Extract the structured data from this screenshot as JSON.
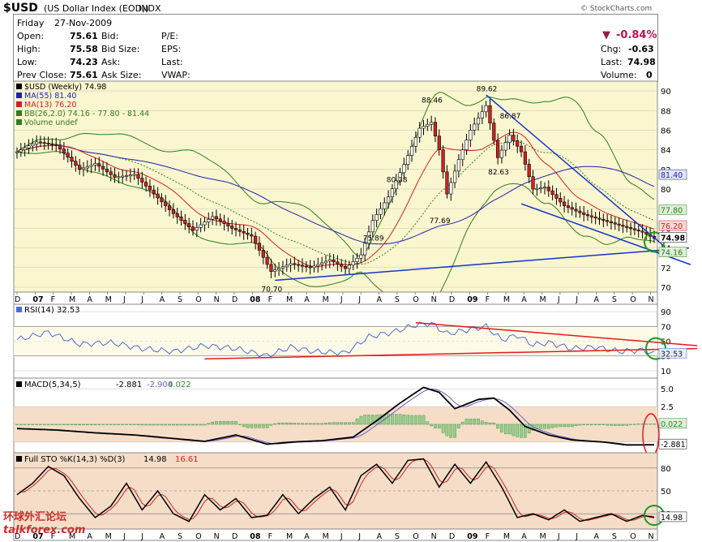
{
  "header": {
    "symbol": "$USD",
    "name": "(US Dollar Index (EOD))",
    "exchange": "INDX",
    "copyright": "© StockCharts.com",
    "day": "Friday",
    "date": "27-Nov-2009",
    "change_pct": "-0.84%",
    "fields": {
      "open_label": "Open:",
      "open": "75.61",
      "high_label": "High:",
      "high": "75.58",
      "low_label": "Low:",
      "low": "74.23",
      "prev_label": "Prev Close:",
      "prev": "75.61",
      "bid_label": "Bid:",
      "bidsize_label": "Bid Size:",
      "ask_label": "Ask:",
      "asksize_label": "Ask Size:",
      "pe_label": "P/E:",
      "eps_label": "EPS:",
      "last_label_mid": "Last:",
      "vwap_label": "VWAP:",
      "chg_label": "Chg:",
      "chg": "-0.63",
      "last_label": "Last:",
      "last": "74.98",
      "volume_label": "Volume:",
      "volume": "0"
    }
  },
  "colors": {
    "panel_bg": "#faf6cf",
    "osc_bg": "#f5ddc8",
    "price": "#000000",
    "ma55": "#1f1fb0",
    "ma13": "#d32020",
    "bb": "#2e7d1e",
    "trend_blue": "#1433c8",
    "trend_red": "#e31a1a",
    "rsi": "#4a6ad8",
    "macd": "#000000",
    "signal": "#6a5acd",
    "hist": "#2e8b2e"
  },
  "chart_data": [
    {
      "type": "candlestick",
      "title": "$USD (Weekly) 74.98",
      "legend": [
        "$USD (Weekly) 74.98",
        "MA(55) 81.40",
        "MA(13) 76.20",
        "BB(26,2.0) 74.16 - 77.80 - 81.44",
        "Volume undef"
      ],
      "y_ticks": [
        70,
        72,
        74,
        76,
        78,
        80,
        82,
        84,
        86,
        88,
        90
      ],
      "ylim": [
        69.5,
        91
      ],
      "x_ticks": [
        "D",
        "07",
        "F",
        "M",
        "A",
        "M",
        "J",
        "J",
        "A",
        "S",
        "O",
        "N",
        "D",
        "08",
        "F",
        "M",
        "A",
        "M",
        "J",
        "J",
        "A",
        "S",
        "O",
        "N",
        "D",
        "09",
        "F",
        "M",
        "A",
        "M",
        "J",
        "J",
        "A",
        "S",
        "O",
        "N"
      ],
      "annotations": [
        {
          "label": "70.70",
          "week": 65,
          "value": 70.7
        },
        {
          "label": "75.89",
          "week": 91,
          "value": 75.89
        },
        {
          "label": "80.38",
          "week": 97,
          "value": 80.38
        },
        {
          "label": "88.46",
          "week": 106,
          "value": 88.46
        },
        {
          "label": "77.69",
          "week": 108,
          "value": 77.69
        },
        {
          "label": "89.62",
          "week": 120,
          "value": 89.62
        },
        {
          "label": "86.87",
          "week": 126,
          "value": 86.87
        },
        {
          "label": "82.63",
          "week": 123,
          "value": 82.63
        }
      ],
      "right_labels": [
        "81.40",
        "77.80",
        "76.20",
        "74.98",
        "74.16"
      ],
      "anchors": [
        [
          0,
          83.8
        ],
        [
          5,
          84.8
        ],
        [
          10,
          84.5
        ],
        [
          16,
          82.0
        ],
        [
          20,
          82.6
        ],
        [
          25,
          81.2
        ],
        [
          30,
          81.5
        ],
        [
          35,
          79.5
        ],
        [
          40,
          77.5
        ],
        [
          45,
          75.8
        ],
        [
          50,
          77.2
        ],
        [
          55,
          76.0
        ],
        [
          60,
          75.2
        ],
        [
          65,
          71.6
        ],
        [
          70,
          72.4
        ],
        [
          75,
          72.0
        ],
        [
          80,
          72.8
        ],
        [
          84,
          71.9
        ],
        [
          88,
          73.3
        ],
        [
          91,
          76.8
        ],
        [
          95,
          79.2
        ],
        [
          99,
          82.5
        ],
        [
          103,
          86.2
        ],
        [
          106,
          86.8
        ],
        [
          108,
          84.0
        ],
        [
          110,
          79.5
        ],
        [
          113,
          83.0
        ],
        [
          116,
          86.0
        ],
        [
          120,
          88.5
        ],
        [
          123,
          83.2
        ],
        [
          126,
          85.5
        ],
        [
          129,
          83.8
        ],
        [
          132,
          80.0
        ],
        [
          135,
          80.2
        ],
        [
          140,
          78.3
        ],
        [
          145,
          77.4
        ],
        [
          150,
          76.8
        ],
        [
          155,
          76.2
        ],
        [
          160,
          75.6
        ],
        [
          163,
          74.98
        ]
      ]
    },
    {
      "type": "line",
      "title": "RSI(14) 32.53",
      "y_ticks": [
        10,
        30,
        50,
        70,
        90
      ],
      "ylim": [
        0,
        100
      ],
      "last_value": "32.53",
      "anchors": [
        [
          0,
          52
        ],
        [
          8,
          62
        ],
        [
          16,
          46
        ],
        [
          24,
          48
        ],
        [
          32,
          40
        ],
        [
          40,
          36
        ],
        [
          48,
          44
        ],
        [
          56,
          40
        ],
        [
          64,
          30
        ],
        [
          70,
          42
        ],
        [
          76,
          36
        ],
        [
          84,
          34
        ],
        [
          90,
          56
        ],
        [
          96,
          62
        ],
        [
          102,
          72
        ],
        [
          106,
          74
        ],
        [
          110,
          60
        ],
        [
          116,
          66
        ],
        [
          120,
          70
        ],
        [
          124,
          52
        ],
        [
          128,
          58
        ],
        [
          132,
          45
        ],
        [
          136,
          48
        ],
        [
          142,
          40
        ],
        [
          148,
          42
        ],
        [
          154,
          36
        ],
        [
          160,
          38
        ],
        [
          163,
          32.53
        ]
      ]
    },
    {
      "type": "line",
      "title": "MACD(5,34,5) -2.881, -2.904, 0.022",
      "y_ticks": [
        -2.5,
        0,
        2.5,
        5.0
      ],
      "ylim": [
        -4,
        6.5
      ],
      "labels": [
        "MACD(5,34,5)",
        "-2.881",
        "-2.904",
        "0.022"
      ],
      "last_values": [
        "0.022",
        "-2.881"
      ],
      "anchors": [
        [
          0,
          -0.6
        ],
        [
          10,
          -0.8
        ],
        [
          20,
          -1.2
        ],
        [
          30,
          -1.5
        ],
        [
          40,
          -2.0
        ],
        [
          48,
          -2.4
        ],
        [
          56,
          -1.5
        ],
        [
          64,
          -2.8
        ],
        [
          70,
          -2.5
        ],
        [
          78,
          -2.3
        ],
        [
          86,
          -1.8
        ],
        [
          92,
          0.5
        ],
        [
          98,
          3.0
        ],
        [
          104,
          5.2
        ],
        [
          108,
          4.5
        ],
        [
          112,
          2.2
        ],
        [
          118,
          3.5
        ],
        [
          122,
          3.7
        ],
        [
          126,
          2.0
        ],
        [
          130,
          -0.3
        ],
        [
          136,
          -1.5
        ],
        [
          142,
          -2.2
        ],
        [
          150,
          -2.5
        ],
        [
          156,
          -2.9
        ],
        [
          163,
          -2.881
        ]
      ]
    },
    {
      "type": "line",
      "title": "Full STO %K(14,3) %D(3) 14.98, 16.61",
      "y_ticks": [
        20,
        50,
        80
      ],
      "ylim": [
        0,
        100
      ],
      "labels": [
        "Full STO %K(14,3) %D(3)",
        "14.98",
        "16.61"
      ],
      "last_value": "14.98",
      "anchors": [
        [
          0,
          45
        ],
        [
          4,
          60
        ],
        [
          8,
          82
        ],
        [
          12,
          70
        ],
        [
          16,
          40
        ],
        [
          20,
          15
        ],
        [
          24,
          30
        ],
        [
          28,
          60
        ],
        [
          32,
          25
        ],
        [
          36,
          50
        ],
        [
          40,
          20
        ],
        [
          44,
          10
        ],
        [
          48,
          45
        ],
        [
          52,
          25
        ],
        [
          56,
          40
        ],
        [
          60,
          15
        ],
        [
          64,
          18
        ],
        [
          68,
          45
        ],
        [
          72,
          20
        ],
        [
          76,
          40
        ],
        [
          80,
          55
        ],
        [
          84,
          25
        ],
        [
          88,
          70
        ],
        [
          92,
          85
        ],
        [
          96,
          60
        ],
        [
          100,
          90
        ],
        [
          104,
          92
        ],
        [
          108,
          55
        ],
        [
          112,
          85
        ],
        [
          116,
          60
        ],
        [
          120,
          88
        ],
        [
          124,
          55
        ],
        [
          128,
          15
        ],
        [
          132,
          20
        ],
        [
          136,
          12
        ],
        [
          140,
          25
        ],
        [
          144,
          10
        ],
        [
          148,
          15
        ],
        [
          152,
          20
        ],
        [
          156,
          10
        ],
        [
          160,
          18
        ],
        [
          163,
          14.98
        ]
      ]
    }
  ],
  "watermark": {
    "cn": "环球外汇论坛",
    "site": "talkforex.com"
  }
}
